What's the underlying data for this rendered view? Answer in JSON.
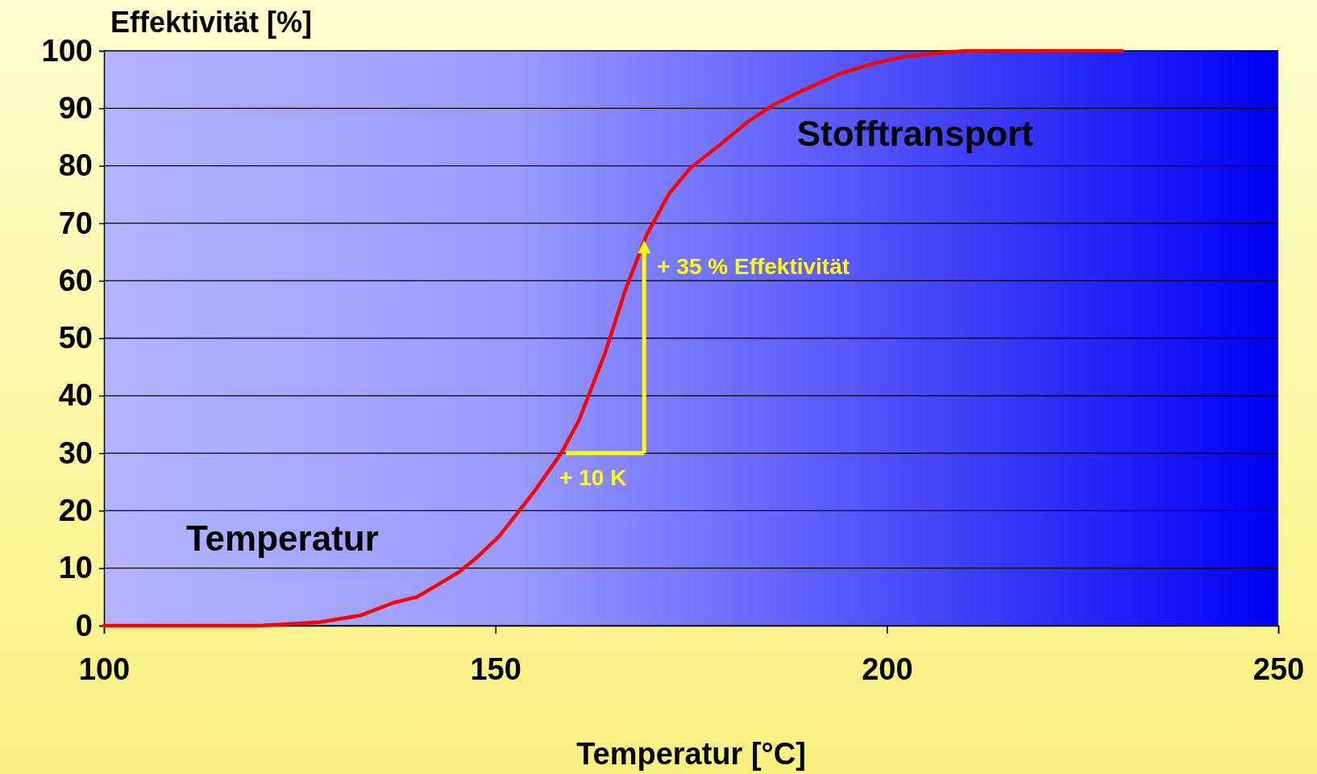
{
  "chart_data": {
    "type": "line",
    "xlabel": "Temperatur [°C]",
    "ylabel": "Effektivität [%]",
    "x": [
      100,
      120,
      127.5,
      132.8,
      137,
      140,
      145.2,
      147.5,
      150.5,
      155,
      158.4,
      160.7,
      164,
      166.6,
      169.3,
      172.2,
      174.9,
      179,
      182.2,
      185.4,
      189.7,
      194,
      198.3,
      202.6,
      210,
      230
    ],
    "series": [
      {
        "color": "#ff0000",
        "values": [
          0,
          0,
          0.6,
          1.8,
          4,
          5,
          9.2,
          11.7,
          15.6,
          23.4,
          30,
          35.8,
          47.4,
          58.4,
          67.9,
          75.2,
          79.6,
          84,
          87.6,
          90.5,
          93.4,
          96,
          97.8,
          99.1,
          100,
          100
        ]
      }
    ],
    "xlim": [
      100,
      250
    ],
    "xticks": [
      100,
      150,
      200,
      250
    ],
    "ylim": [
      0,
      100
    ],
    "yticks": [
      0,
      10,
      20,
      30,
      40,
      50,
      60,
      70,
      80,
      90,
      100
    ],
    "grid": "y",
    "marker": "none",
    "line_style": "solid",
    "annotations": [
      {
        "text": "+ 10 K",
        "x": 159,
        "y": 30
      },
      {
        "text": "+ 35 % Effektivität",
        "x": 169,
        "y": 67
      },
      "Temperatur",
      "Stofftransport"
    ]
  }
}
